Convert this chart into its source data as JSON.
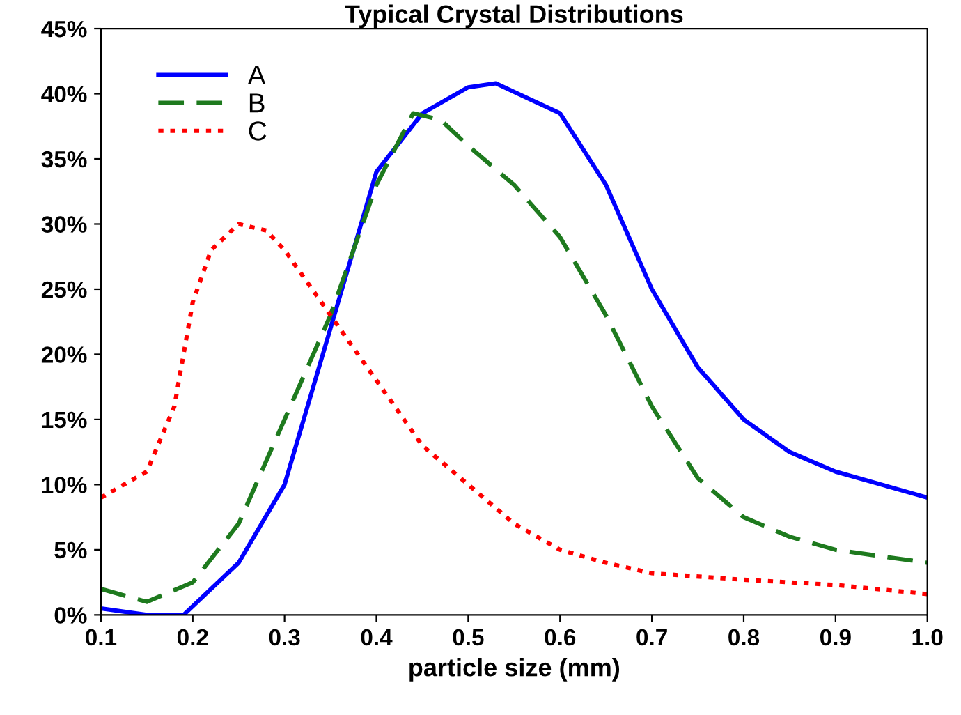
{
  "chart_data": {
    "type": "line",
    "title": "Typical Crystal Distributions",
    "xlabel": "particle size (mm)",
    "x": [
      0.1,
      0.15,
      0.19,
      0.25,
      0.3,
      0.35,
      0.4,
      0.45,
      0.5,
      0.53,
      0.6,
      0.65,
      0.7,
      0.75,
      0.8,
      0.85,
      0.9,
      0.95,
      1.0
    ],
    "series": [
      {
        "name": "A",
        "color": "#0000ff",
        "line_style": "solid",
        "values": [
          0.5,
          0,
          0,
          4,
          10,
          22,
          34,
          38.5,
          40.5,
          40.8,
          38.5,
          33,
          25,
          19,
          15,
          12.5,
          11,
          10,
          9
        ]
      },
      {
        "name": "B",
        "color": "#1e7a1e",
        "line_style": "dashed",
        "x": [
          0.1,
          0.15,
          0.2,
          0.25,
          0.3,
          0.35,
          0.4,
          0.44,
          0.47,
          0.5,
          0.55,
          0.6,
          0.65,
          0.7,
          0.75,
          0.8,
          0.85,
          0.9,
          0.95,
          1.0
        ],
        "values": [
          2,
          1,
          2.5,
          7,
          15,
          23,
          33,
          38.5,
          38,
          36,
          33,
          29,
          23,
          16,
          10.5,
          7.5,
          6,
          5,
          4.5,
          4
        ]
      },
      {
        "name": "C",
        "color": "#ff0000",
        "line_style": "dotted",
        "x": [
          0.1,
          0.15,
          0.18,
          0.2,
          0.22,
          0.25,
          0.28,
          0.3,
          0.35,
          0.4,
          0.45,
          0.5,
          0.55,
          0.6,
          0.65,
          0.7,
          0.8,
          0.9,
          1.0
        ],
        "values": [
          9,
          11,
          16,
          24,
          28,
          30,
          29.5,
          28,
          23,
          18,
          13,
          10,
          7,
          5,
          4,
          3.2,
          2.7,
          2.3,
          1.6
        ]
      }
    ],
    "xlim": [
      0.1,
      1.0
    ],
    "xticks": [
      {
        "value": 0.1,
        "label": "0.1"
      },
      {
        "value": 0.2,
        "label": "0.2"
      },
      {
        "value": 0.3,
        "label": "0.3"
      },
      {
        "value": 0.4,
        "label": "0.4"
      },
      {
        "value": 0.5,
        "label": "0.5"
      },
      {
        "value": 0.6,
        "label": "0.6"
      },
      {
        "value": 0.7,
        "label": "0.7"
      },
      {
        "value": 0.8,
        "label": "0.8"
      },
      {
        "value": 0.9,
        "label": "0.9"
      },
      {
        "value": 1.0,
        "label": "1.0"
      }
    ],
    "ylim": [
      0,
      45
    ],
    "yticks": [
      {
        "value": 0,
        "label": "0%"
      },
      {
        "value": 5,
        "label": "5%"
      },
      {
        "value": 10,
        "label": "10%"
      },
      {
        "value": 15,
        "label": "15%"
      },
      {
        "value": 20,
        "label": "20%"
      },
      {
        "value": 25,
        "label": "25%"
      },
      {
        "value": 30,
        "label": "30%"
      },
      {
        "value": 35,
        "label": "35%"
      },
      {
        "value": 40,
        "label": "40%"
      },
      {
        "value": 45,
        "label": "45%"
      }
    ],
    "grid": false,
    "legend": "top left"
  }
}
